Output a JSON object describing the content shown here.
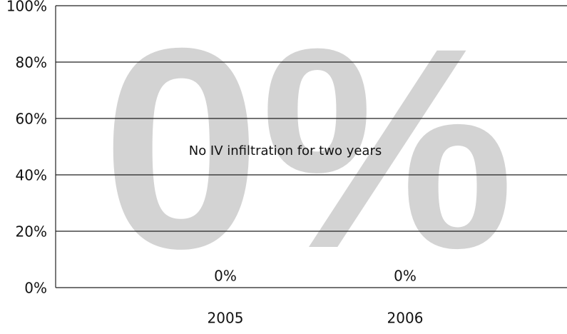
{
  "chart_data": {
    "type": "bar",
    "watermark": "0%",
    "annotation": "No IV infiltration for two years",
    "categories": [
      "2005",
      "2006"
    ],
    "values": [
      0,
      0
    ],
    "value_labels": [
      "0%",
      "0%"
    ],
    "ylim": [
      0,
      100
    ],
    "yticks": [
      {
        "value": 0,
        "label": "0%"
      },
      {
        "value": 20,
        "label": "20%"
      },
      {
        "value": 40,
        "label": "40%"
      },
      {
        "value": 60,
        "label": "60%"
      },
      {
        "value": 80,
        "label": "80%"
      },
      {
        "value": 100,
        "label": "100%"
      }
    ],
    "grid": true
  }
}
